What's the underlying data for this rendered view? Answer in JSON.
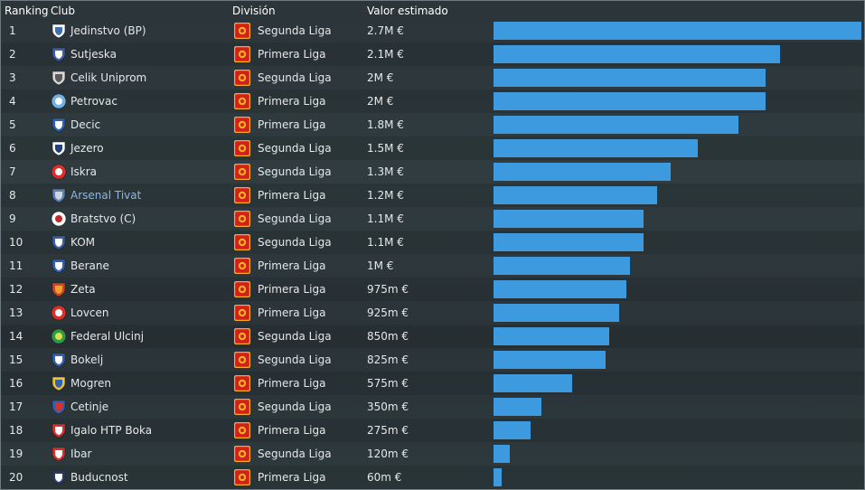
{
  "headers": {
    "rank": "Ranking",
    "club": "Club",
    "division": "División",
    "value": "Valor estimado"
  },
  "accent_color": "#3d9ade",
  "link_color": "#8ab6e8",
  "max_value_eur": 2700000,
  "rows": [
    {
      "rank": "1",
      "club": "Jedinstvo (BP)",
      "division": "Segunda Liga",
      "value": "2.7M €",
      "value_eur": 2700000,
      "crest": "white-blue-shield"
    },
    {
      "rank": "2",
      "club": "Sutjeska",
      "division": "Primera Liga",
      "value": "2.1M €",
      "value_eur": 2100000,
      "crest": "blue-white-shield"
    },
    {
      "rank": "3",
      "club": "Celik Uniprom",
      "division": "Segunda Liga",
      "value": "2M €",
      "value_eur": 2000000,
      "crest": "grey-heart"
    },
    {
      "rank": "4",
      "club": "Petrovac",
      "division": "Primera Liga",
      "value": "2M €",
      "value_eur": 2000000,
      "crest": "lightblue-round"
    },
    {
      "rank": "5",
      "club": "Decic",
      "division": "Primera Liga",
      "value": "1.8M €",
      "value_eur": 1800000,
      "crest": "blue-shield"
    },
    {
      "rank": "6",
      "club": "Jezero",
      "division": "Segunda Liga",
      "value": "1.5M €",
      "value_eur": 1500000,
      "crest": "navy-shield"
    },
    {
      "rank": "7",
      "club": "Iskra",
      "division": "Segunda Liga",
      "value": "1.3M €",
      "value_eur": 1300000,
      "crest": "red-round"
    },
    {
      "rank": "8",
      "club": "Arsenal Tivat",
      "division": "Primera Liga",
      "value": "1.2M €",
      "value_eur": 1200000,
      "crest": "blue-grey-shield",
      "link": true
    },
    {
      "rank": "9",
      "club": "Bratstvo (C)",
      "division": "Segunda Liga",
      "value": "1.1M €",
      "value_eur": 1100000,
      "crest": "red-white-round"
    },
    {
      "rank": "10",
      "club": "KOM",
      "division": "Segunda Liga",
      "value": "1.1M €",
      "value_eur": 1100000,
      "crest": "blue-white-shield"
    },
    {
      "rank": "11",
      "club": "Berane",
      "division": "Primera Liga",
      "value": "1M €",
      "value_eur": 1000000,
      "crest": "blue-shield"
    },
    {
      "rank": "12",
      "club": "Zeta",
      "division": "Primera Liga",
      "value": "975m €",
      "value_eur": 975000,
      "crest": "red-orange-shield"
    },
    {
      "rank": "13",
      "club": "Lovcen",
      "division": "Primera Liga",
      "value": "925m €",
      "value_eur": 925000,
      "crest": "red-round"
    },
    {
      "rank": "14",
      "club": "Federal Ulcinj",
      "division": "Segunda Liga",
      "value": "850m €",
      "value_eur": 850000,
      "crest": "green-round"
    },
    {
      "rank": "15",
      "club": "Bokelj",
      "division": "Segunda Liga",
      "value": "825m €",
      "value_eur": 825000,
      "crest": "blue-shield"
    },
    {
      "rank": "16",
      "club": "Mogren",
      "division": "Primera Liga",
      "value": "575m €",
      "value_eur": 575000,
      "crest": "yellow-blue-shield"
    },
    {
      "rank": "17",
      "club": "Cetinje",
      "division": "Segunda Liga",
      "value": "350m €",
      "value_eur": 350000,
      "crest": "blue-red-shield"
    },
    {
      "rank": "18",
      "club": "Igalo HTP Boka",
      "division": "Primera Liga",
      "value": "275m €",
      "value_eur": 275000,
      "crest": "red-white-shield"
    },
    {
      "rank": "19",
      "club": "Ibar",
      "division": "Segunda Liga",
      "value": "120m €",
      "value_eur": 120000,
      "crest": "red-white-shield"
    },
    {
      "rank": "20",
      "club": "Buducnost",
      "division": "Primera Liga",
      "value": "60m €",
      "value_eur": 60000,
      "crest": "navy-white-shield"
    }
  ],
  "flag_icon": "montenegro-flag-icon"
}
